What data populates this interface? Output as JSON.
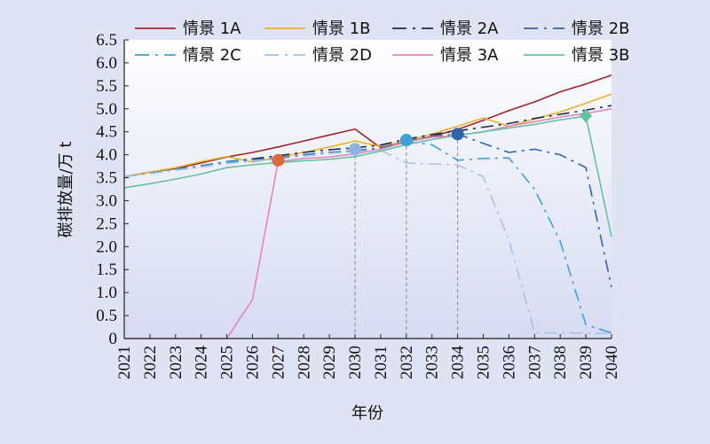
{
  "chart_data": {
    "type": "line",
    "xlabel": "年份",
    "ylabel": "碳排放量/万 t",
    "x": [
      2021,
      2022,
      2023,
      2024,
      2025,
      2026,
      2027,
      2028,
      2029,
      2030,
      2031,
      2032,
      2033,
      2034,
      2035,
      2036,
      2037,
      2038,
      2039,
      2040
    ],
    "x_tick_labels": [
      "2021",
      "2022",
      "2023",
      "2024",
      "2025",
      "2026",
      "2027",
      "2028",
      "2029",
      "2030",
      "2031",
      "2032",
      "2033",
      "2034",
      "2035",
      "2036",
      "2037",
      "2038",
      "2039",
      "2040"
    ],
    "y_tick_labels": [
      "0",
      "0.5",
      "1.0",
      "1.5",
      "2.0",
      "2.5",
      "3.0",
      "3.5",
      "4.0",
      "4.5",
      "5.0",
      "5.5",
      "6.0",
      "6.5"
    ],
    "xlim": [
      2021,
      2040
    ],
    "ylim": [
      0,
      6.5
    ],
    "grid": false,
    "legend_position": "top",
    "series": [
      {
        "name": "情景 1A",
        "color": "#a4232a",
        "dash": "solid",
        "values": [
          3.52,
          3.62,
          3.7,
          3.82,
          3.95,
          4.05,
          4.17,
          4.3,
          4.43,
          4.56,
          4.15,
          4.27,
          4.4,
          4.55,
          4.75,
          4.96,
          5.15,
          5.37,
          5.54,
          5.73
        ]
      },
      {
        "name": "情景 1B",
        "color": "#eab22c",
        "dash": "solid",
        "values": [
          3.52,
          3.62,
          3.72,
          3.85,
          3.96,
          3.84,
          3.94,
          4.05,
          4.17,
          4.3,
          4.18,
          4.3,
          4.45,
          4.62,
          4.8,
          4.62,
          4.78,
          4.93,
          5.12,
          5.32
        ]
      },
      {
        "name": "情景 2A",
        "color": "#1c2b4d",
        "dash": "dashdot",
        "values": [
          3.52,
          3.6,
          3.68,
          3.76,
          3.85,
          3.91,
          3.98,
          4.05,
          4.11,
          4.15,
          4.21,
          4.34,
          4.44,
          4.52,
          4.6,
          4.68,
          4.79,
          4.88,
          4.97,
          5.07
        ]
      },
      {
        "name": "情景 2B",
        "color": "#2f64ad",
        "dash": "dashdot",
        "values": [
          3.52,
          3.6,
          3.68,
          3.76,
          3.85,
          3.89,
          3.93,
          4.0,
          4.05,
          4.09,
          4.15,
          4.3,
          4.4,
          4.45,
          4.25,
          4.05,
          4.12,
          4.0,
          3.72,
          1.12
        ]
      },
      {
        "name": "情景 2C",
        "color": "#3aa2d8",
        "dash": "dashdot",
        "values": [
          3.52,
          3.6,
          3.68,
          3.75,
          3.84,
          3.88,
          3.92,
          3.98,
          4.04,
          4.08,
          4.12,
          4.28,
          4.22,
          3.88,
          3.92,
          3.93,
          3.25,
          2.12,
          0.3,
          0.12
        ]
      },
      {
        "name": "情景 2D",
        "color": "#a9c1e3",
        "dash": "dashdot",
        "values": [
          3.52,
          3.59,
          3.66,
          3.73,
          3.81,
          3.86,
          3.91,
          3.97,
          4.03,
          4.07,
          4.1,
          3.82,
          3.8,
          3.78,
          3.52,
          2.15,
          0.13,
          0.12,
          0.12,
          0.11
        ]
      },
      {
        "name": "情景 3A",
        "color": "#ea82be",
        "dash": "solid",
        "values": [
          0,
          0,
          0,
          0,
          0,
          0.85,
          3.85,
          3.92,
          3.95,
          4.02,
          4.12,
          4.28,
          4.38,
          4.42,
          4.5,
          4.62,
          4.72,
          4.82,
          4.9,
          5.0
        ]
      },
      {
        "name": "情景 3B",
        "color": "#62c3a1",
        "dash": "solid",
        "values": [
          3.28,
          3.37,
          3.47,
          3.58,
          3.72,
          3.78,
          3.83,
          3.87,
          3.9,
          3.96,
          4.08,
          4.22,
          4.33,
          4.42,
          4.5,
          4.58,
          4.66,
          4.76,
          4.84,
          2.22
        ]
      }
    ],
    "markers": [
      {
        "x": 2027,
        "y": 3.88,
        "shape": "circle",
        "color": "#d96b3a"
      },
      {
        "x": 2030,
        "y": 4.12,
        "shape": "circle",
        "color": "#8fb3de"
      },
      {
        "x": 2032,
        "y": 4.32,
        "shape": "circle",
        "color": "#3aa2d8"
      },
      {
        "x": 2034,
        "y": 4.45,
        "shape": "circle",
        "color": "#2f64ad"
      },
      {
        "x": 2039,
        "y": 4.85,
        "shape": "diamond",
        "color": "#62c3a1"
      }
    ],
    "reference_lines_x": [
      2030,
      2032,
      2034
    ]
  }
}
